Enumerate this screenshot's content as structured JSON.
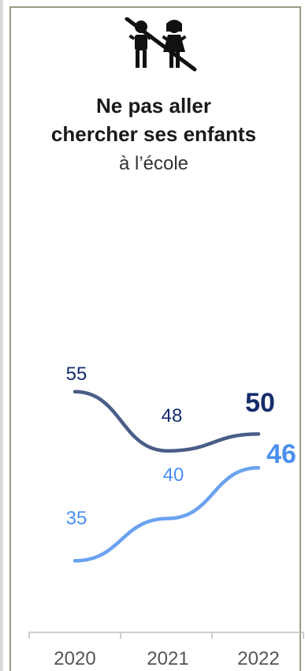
{
  "title": {
    "line1": "Ne pas aller",
    "line2": "chercher ses enfants",
    "line3": "à l’école"
  },
  "icon": "children-crossed-out-icon",
  "colors": {
    "series_dark": "#4a5d87",
    "series_light": "#6aa2f0",
    "label_dark": "#142d6b",
    "label_light": "#4b8ff0",
    "axis": "#bfbfbf",
    "frame": "#9a9a88"
  },
  "chart_data": {
    "type": "line",
    "x": [
      "2020",
      "2021",
      "2022"
    ],
    "ylim": [
      20,
      70
    ],
    "series": [
      {
        "values": [
          55,
          48,
          50
        ],
        "labels": [
          "55",
          "48",
          "50"
        ]
      },
      {
        "values": [
          35,
          40,
          46
        ],
        "labels": [
          "35",
          "40",
          "46"
        ]
      }
    ]
  }
}
